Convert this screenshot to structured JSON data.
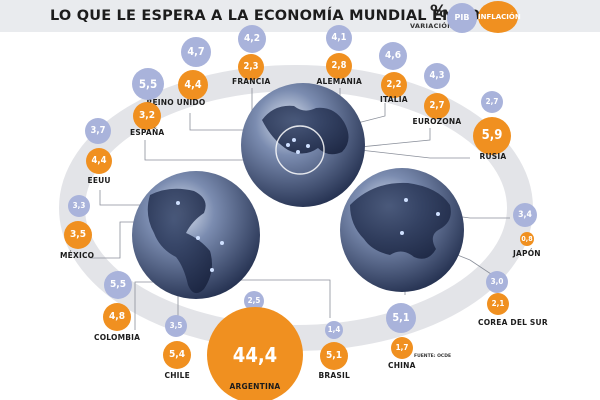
{
  "header": {
    "title": "LO QUE LE ESPERA A LA ECONOMÍA MUNDIAL EN 2022",
    "legend_pct": "%",
    "legend_variation": "VARIACIÓN",
    "legend_pib": "PIB",
    "legend_inflation": "INFLACIÓN"
  },
  "source": "FUENTE: OCDE",
  "colors": {
    "pib": "#a9b3db",
    "inflation": "#f09020",
    "ring": "#e3e4e8",
    "globe": "#2f3f66"
  },
  "chart_data": {
    "type": "bubble",
    "title": "LO QUE LE ESPERA A LA ECONOMÍA MUNDIAL EN 2022",
    "series": [
      {
        "name": "PIB",
        "unit": "%"
      },
      {
        "name": "INFLACIÓN",
        "unit": "%"
      }
    ],
    "countries": [
      {
        "name": "REINO UNIDO",
        "pib": "4,7",
        "inflation": "4,4"
      },
      {
        "name": "FRANCIA",
        "pib": "4,2",
        "inflation": "2,3"
      },
      {
        "name": "ALEMANIA",
        "pib": "4,1",
        "inflation": "2,8"
      },
      {
        "name": "ITALIA",
        "pib": "4,6",
        "inflation": "2,2"
      },
      {
        "name": "EUROZONA",
        "pib": "4,3",
        "inflation": "2,7"
      },
      {
        "name": "RUSIA",
        "pib": "2,7",
        "inflation": "5,9"
      },
      {
        "name": "ESPAÑA",
        "pib": "5,5",
        "inflation": "3,2"
      },
      {
        "name": "EEUU",
        "pib": "3,7",
        "inflation": "4,4"
      },
      {
        "name": "MÉXICO",
        "pib": "3,3",
        "inflation": "3,5"
      },
      {
        "name": "COLOMBIA",
        "pib": "5,5",
        "inflation": "4,8"
      },
      {
        "name": "CHILE",
        "pib": "3,5",
        "inflation": "5,4"
      },
      {
        "name": "ARGENTINA",
        "pib": "2,5",
        "inflation": "44,4"
      },
      {
        "name": "BRASIL",
        "pib": "1,4",
        "inflation": "5,1"
      },
      {
        "name": "CHINA",
        "pib": "5,1",
        "inflation": "1,7"
      },
      {
        "name": "COREA DEL SUR",
        "pib": "3,0",
        "inflation": "2,1"
      },
      {
        "name": "JAPÓN",
        "pib": "3,4",
        "inflation": "0,8"
      }
    ]
  }
}
